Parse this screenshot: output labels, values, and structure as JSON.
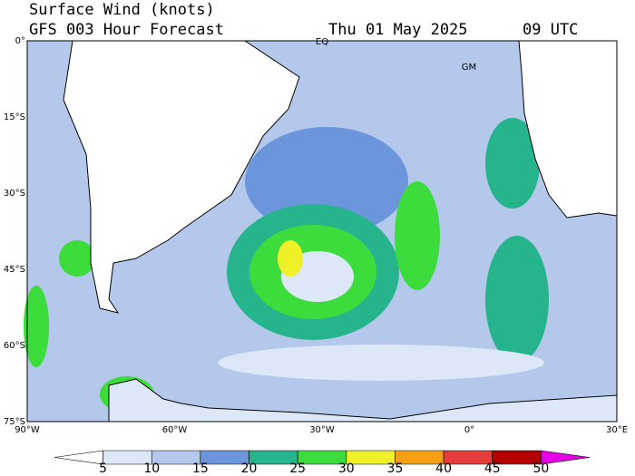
{
  "header": {
    "title": "Surface Wind (knots)",
    "subtitle": "GFS 003 Hour Forecast",
    "date": "Thu 01 May 2025",
    "time": "09 UTC"
  },
  "map": {
    "lat_labels": [
      "0°",
      "15°S",
      "30°S",
      "45°S",
      "60°S",
      "75°S"
    ],
    "lon_labels": [
      "90°W",
      "60°W",
      "30°W",
      "0°",
      "30°E"
    ],
    "place_labels": [
      "EQ",
      "GM"
    ]
  },
  "colorbar": {
    "ticks": [
      5,
      10,
      15,
      20,
      25,
      30,
      35,
      40,
      45,
      50
    ],
    "colors": [
      "#ffffff",
      "#dce8f8",
      "#b4c8ec",
      "#6c96dc",
      "#26b48c",
      "#3cdc3c",
      "#f0f028",
      "#f5a014",
      "#e63c3c",
      "#b40000",
      "#e600e6"
    ]
  }
}
